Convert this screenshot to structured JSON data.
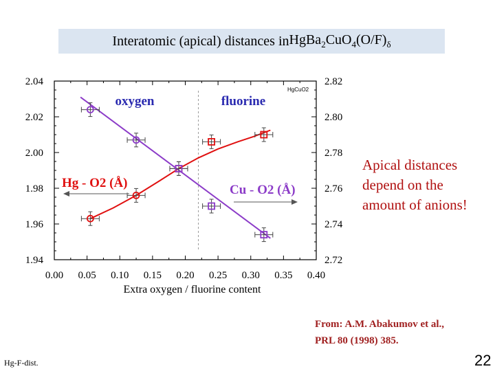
{
  "slide": {
    "title_prefix": "Interatomic (apical) distances in ",
    "formula": [
      {
        "t": "HgBa",
        "sub": false
      },
      {
        "t": "2",
        "sub": true
      },
      {
        "t": "CuO",
        "sub": false
      },
      {
        "t": "4",
        "sub": true
      },
      {
        "t": "(O/F)",
        "sub": false
      },
      {
        "t": "δ",
        "sub": true
      }
    ],
    "side_note_lines": [
      "Apical distances",
      "depend on the",
      "amount of anions!"
    ],
    "source_lines": [
      "From: A.M. Abakumov et al.,",
      "PRL 80 (1998) 385."
    ],
    "footer_left": "Hg-F-dist.",
    "page_number": "22"
  },
  "chart_data": {
    "type": "scatter",
    "xlabel": "Extra oxygen / fluorine content",
    "x_ticks": [
      "0.00",
      "0.05",
      "0.10",
      "0.15",
      "0.20",
      "0.25",
      "0.30",
      "0.35",
      "0.40"
    ],
    "xlim": [
      0,
      0.4
    ],
    "y_left_ticks": [
      "1.94",
      "1.96",
      "1.98",
      "2.00",
      "2.02",
      "2.04"
    ],
    "y_left_lim": [
      1.94,
      2.04
    ],
    "y_right_ticks": [
      "2.72",
      "2.74",
      "2.76",
      "2.78",
      "2.80",
      "2.82"
    ],
    "y_right_lim": [
      2.72,
      2.82
    ],
    "region_labels": [
      "oxygen",
      "fluorine"
    ],
    "region_divider_x": 0.22,
    "corner_label": "HgCuO2",
    "series": [
      {
        "name": "Hg - O2 (Å)",
        "axis": "left",
        "color": "#e01010",
        "points": [
          {
            "x": 0.055,
            "y": 1.963,
            "marker": "circle"
          },
          {
            "x": 0.125,
            "y": 1.976,
            "marker": "circle"
          },
          {
            "x": 0.19,
            "y": 1.991,
            "marker": "square"
          },
          {
            "x": 0.24,
            "y": 2.006,
            "marker": "square"
          },
          {
            "x": 0.32,
            "y": 2.01,
            "marker": "square"
          }
        ],
        "fit": [
          [
            0.055,
            1.963
          ],
          [
            0.09,
            1.969
          ],
          [
            0.125,
            1.976
          ],
          [
            0.16,
            1.984
          ],
          [
            0.19,
            1.991
          ],
          [
            0.22,
            1.997
          ],
          [
            0.25,
            2.002
          ],
          [
            0.28,
            2.006
          ],
          [
            0.305,
            2.009
          ],
          [
            0.33,
            2.0125
          ]
        ]
      },
      {
        "name": "Cu - O2 (Å)",
        "axis": "right",
        "color": "#8c3cc8",
        "points": [
          {
            "x": 0.055,
            "y": 2.804,
            "marker": "circle"
          },
          {
            "x": 0.125,
            "y": 2.787,
            "marker": "circle"
          },
          {
            "x": 0.19,
            "y": 2.771,
            "marker": "square"
          },
          {
            "x": 0.24,
            "y": 2.75,
            "marker": "square"
          },
          {
            "x": 0.32,
            "y": 2.734,
            "marker": "square"
          }
        ],
        "fit": [
          [
            0.04,
            2.811
          ],
          [
            0.33,
            2.732
          ]
        ]
      }
    ]
  }
}
